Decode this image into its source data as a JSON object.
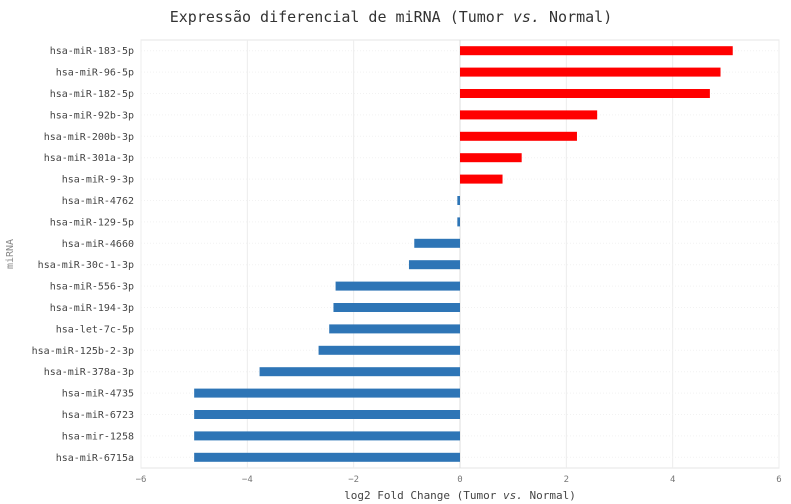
{
  "chart_data": {
    "type": "bar",
    "orientation": "horizontal",
    "title": "Expressão diferencial de miRNA (Tumor vs. Normal)",
    "title_parts": [
      "Expressão diferencial de miRNA (Tumor ",
      "vs.",
      " Normal)"
    ],
    "xlabel": "log2 Fold Change (Tumor vs. Normal)",
    "xlabel_parts": [
      "log2 Fold Change (Tumor ",
      "vs.",
      " Normal)"
    ],
    "ylabel": "miRNA",
    "xlim": [
      -6,
      6
    ],
    "xticks": [
      -6,
      -4,
      -2,
      0,
      2,
      4,
      6
    ],
    "xtick_labels": [
      "−6",
      "−4",
      "−2",
      "0",
      "2",
      "4",
      "6"
    ],
    "grid": true,
    "colors": {
      "positive": "#ff0000",
      "negative": "#2e75b6"
    },
    "categories": [
      "hsa-miR-183-5p",
      "hsa-miR-96-5p",
      "hsa-miR-182-5p",
      "hsa-miR-92b-3p",
      "hsa-miR-200b-3p",
      "hsa-miR-301a-3p",
      "hsa-miR-9-3p",
      "hsa-miR-4762",
      "hsa-miR-129-5p",
      "hsa-miR-4660",
      "hsa-miR-30c-1-3p",
      "hsa-miR-556-3p",
      "hsa-miR-194-3p",
      "hsa-let-7c-5p",
      "hsa-miR-125b-2-3p",
      "hsa-miR-378a-3p",
      "hsa-miR-4735",
      "hsa-miR-6723",
      "hsa-mir-1258",
      "hsa-miR-6715a"
    ],
    "values": [
      5.13,
      4.9,
      4.7,
      2.58,
      2.2,
      1.16,
      0.8,
      -0.05,
      -0.05,
      -0.86,
      -0.96,
      -2.34,
      -2.38,
      -2.46,
      -2.66,
      -3.77,
      -5.0,
      -5.0,
      -5.0,
      -5.0
    ]
  }
}
